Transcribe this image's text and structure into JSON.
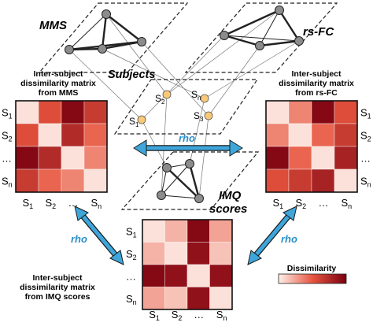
{
  "planes": {
    "mms": "MMS",
    "rsfc": "rs-FC",
    "subjects": "Subjects",
    "imq_line1": "IMQ",
    "imq_line2": "scores"
  },
  "subject_labels": {
    "s2": "S",
    "s2sub": "2",
    "sn": "S",
    "snsub": "n",
    "s3": "S",
    "s3sub": "3",
    "s1": "S",
    "s1sub": "1"
  },
  "rho_label": "rho",
  "matrix_titles": {
    "mms": [
      "Inter-subject",
      "dissimilarity matrix",
      "from MMS"
    ],
    "rsfc": [
      "Inter-subject",
      "dissimilarity matrix",
      "from rs-FC"
    ],
    "imq": [
      "Inter-subject",
      "dissimilarity matrix",
      "from IMQ scores"
    ]
  },
  "axis_labels": {
    "row": [
      [
        "S",
        "1"
      ],
      [
        "S",
        "2"
      ],
      [
        "…",
        ""
      ],
      [
        "S",
        "n"
      ]
    ],
    "col": [
      [
        "S",
        "1"
      ],
      [
        "S",
        "2"
      ],
      [
        "…",
        ""
      ],
      [
        "S",
        "n"
      ]
    ]
  },
  "matrices": {
    "mms": [
      [
        0.05,
        0.55,
        0.95,
        0.65
      ],
      [
        0.55,
        0.05,
        0.75,
        0.45
      ],
      [
        0.95,
        0.75,
        0.05,
        0.35
      ],
      [
        0.65,
        0.45,
        0.35,
        0.05
      ]
    ],
    "rsfc": [
      [
        0.05,
        0.35,
        0.95,
        0.55
      ],
      [
        0.35,
        0.05,
        0.45,
        0.65
      ],
      [
        0.95,
        0.45,
        0.05,
        0.8
      ],
      [
        0.55,
        0.65,
        0.8,
        0.05
      ]
    ],
    "imq": [
      [
        0.05,
        0.2,
        0.95,
        0.25
      ],
      [
        0.2,
        0.05,
        0.9,
        0.15
      ],
      [
        0.95,
        0.9,
        0.05,
        0.9
      ],
      [
        0.25,
        0.15,
        0.9,
        0.05
      ]
    ]
  },
  "legend": {
    "title": "Dissimilarity"
  },
  "colors": {
    "low": "#fdf0ea",
    "high": "#7a0010",
    "node_gray": "#8c8c8c",
    "subject_dot": "#f9c977",
    "arrow": "#3ea6da"
  }
}
